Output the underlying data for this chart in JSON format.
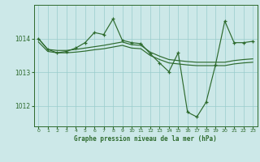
{
  "bg_color": "#cce8e8",
  "grid_color": "#99cccc",
  "line_color": "#2d6a2d",
  "title": "Graphe pression niveau de la mer (hPa)",
  "xlim": [
    -0.5,
    23.5
  ],
  "ylim": [
    1011.4,
    1015.0
  ],
  "yticks": [
    1012,
    1013,
    1014
  ],
  "xticks": [
    0,
    1,
    2,
    3,
    4,
    5,
    6,
    7,
    8,
    9,
    10,
    11,
    12,
    13,
    14,
    15,
    16,
    17,
    18,
    19,
    20,
    21,
    22,
    23
  ],
  "series1_x": [
    0,
    1,
    2,
    3,
    4,
    5,
    6,
    7,
    8,
    9,
    10,
    11,
    12,
    13,
    14,
    15,
    16,
    17,
    18,
    19,
    20,
    21,
    22,
    23
  ],
  "series1_y": [
    1014.0,
    1013.68,
    1013.65,
    1013.65,
    1013.68,
    1013.72,
    1013.76,
    1013.8,
    1013.85,
    1013.9,
    1013.82,
    1013.8,
    1013.6,
    1013.48,
    1013.38,
    1013.35,
    1013.32,
    1013.3,
    1013.3,
    1013.3,
    1013.3,
    1013.35,
    1013.38,
    1013.4
  ],
  "series2_x": [
    0,
    1,
    2,
    3,
    4,
    5,
    6,
    7,
    8,
    9,
    10,
    11,
    12,
    13,
    14,
    15,
    16,
    17,
    18,
    19,
    20,
    21,
    22,
    23
  ],
  "series2_y": [
    1013.9,
    1013.62,
    1013.58,
    1013.58,
    1013.6,
    1013.63,
    1013.67,
    1013.7,
    1013.75,
    1013.8,
    1013.72,
    1013.7,
    1013.5,
    1013.38,
    1013.28,
    1013.25,
    1013.22,
    1013.2,
    1013.2,
    1013.2,
    1013.2,
    1013.25,
    1013.28,
    1013.3
  ],
  "series3_x": [
    0,
    1,
    2,
    3,
    4,
    5,
    6,
    7,
    8,
    9,
    10,
    11,
    12,
    13,
    14,
    15,
    16,
    17,
    18,
    19,
    20,
    21,
    22,
    23
  ],
  "series3_y": [
    1014.0,
    1013.68,
    1013.58,
    1013.62,
    1013.72,
    1013.88,
    1014.18,
    1014.12,
    1014.58,
    1013.95,
    1013.88,
    1013.85,
    1013.55,
    1013.28,
    1013.02,
    1013.58,
    1011.82,
    1011.68,
    1012.12,
    1013.22,
    1014.52,
    1013.88,
    1013.88,
    1013.92
  ]
}
